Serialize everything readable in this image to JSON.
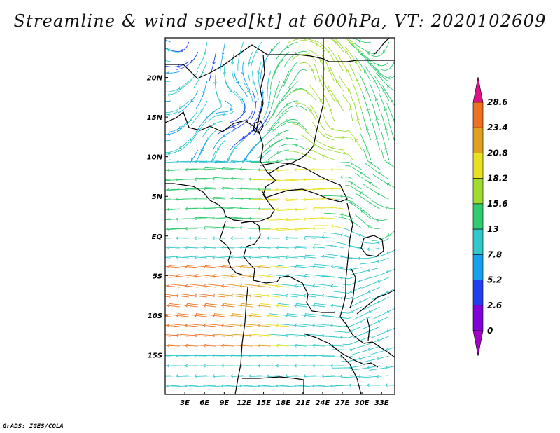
{
  "title": "Streamline & wind speed[kt] at 600hPa, VT: 2020102609",
  "footer": "GrADS: IGES/COLA",
  "map": {
    "lon_range": [
      0,
      35
    ],
    "lat_range": [
      -20,
      25
    ],
    "lat_ticks": [
      "20N",
      "15N",
      "10N",
      "5N",
      "EQ",
      "5S",
      "10S",
      "15S"
    ],
    "lon_ticks": [
      "3E",
      "6E",
      "9E",
      "12E",
      "15E",
      "18E",
      "21E",
      "24E",
      "27E",
      "30E",
      "33E"
    ]
  },
  "colorbar": {
    "labels": [
      "28.6",
      "23.4",
      "20.8",
      "18.2",
      "15.6",
      "13",
      "7.8",
      "5.2",
      "2.6",
      "0"
    ],
    "colors": [
      "#e0108a",
      "#ee7020",
      "#e0a020",
      "#e8e020",
      "#a0dc30",
      "#30cc70",
      "#30c8c8",
      "#18a0f0",
      "#2040f0",
      "#8000d8",
      "#a000c8"
    ]
  },
  "speed_colors": {
    "calm": "#8000d8",
    "low": "#2040f0",
    "light": "#18a0f0",
    "moderate": "#30c8c8",
    "fresh": "#30cc70",
    "strong": "#a0dc30",
    "high": "#e8e020",
    "very_high": "#e0a020",
    "extreme": "#ee7020"
  }
}
